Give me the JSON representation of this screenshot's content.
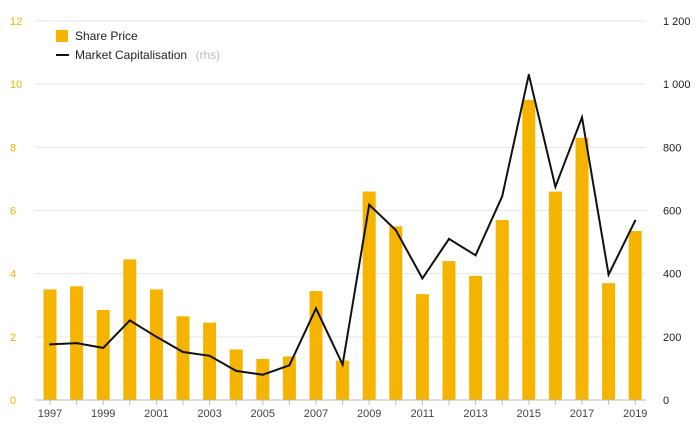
{
  "chart_data": {
    "type": "bar",
    "categories": [
      "1997",
      "1998",
      "1999",
      "2000",
      "2001",
      "2002",
      "2003",
      "2004",
      "2005",
      "2006",
      "2007",
      "2008",
      "2009",
      "2010",
      "2011",
      "2012",
      "2013",
      "2014",
      "2015",
      "2016",
      "2017",
      "2018",
      "2019"
    ],
    "x_tick_labels": [
      "1997",
      "1999",
      "2001",
      "2003",
      "2005",
      "2007",
      "2009",
      "2011",
      "2013",
      "2015",
      "2017",
      "2019"
    ],
    "series": [
      {
        "name": "Share Price",
        "type": "bar",
        "axis": "left",
        "color": "#f5b400",
        "values": [
          3.5,
          3.6,
          2.85,
          4.45,
          3.5,
          2.65,
          2.45,
          1.6,
          1.3,
          1.38,
          3.45,
          1.25,
          6.6,
          5.5,
          3.35,
          4.4,
          3.93,
          5.7,
          9.5,
          6.6,
          8.3,
          3.7,
          5.35
        ]
      },
      {
        "name": "Market Capitalisation",
        "legend_note": "(rhs)",
        "type": "line",
        "axis": "right",
        "color": "#111111",
        "values": [
          176,
          180,
          165,
          252,
          200,
          152,
          140,
          92,
          80,
          110,
          290,
          112,
          618,
          538,
          385,
          510,
          458,
          645,
          1030,
          675,
          895,
          397,
          568
        ]
      }
    ],
    "y_left": {
      "min": 0,
      "max": 12,
      "ticks": [
        0,
        2,
        4,
        6,
        8,
        10,
        12
      ],
      "tick_labels": [
        "0",
        "2",
        "4",
        "6",
        "8",
        "10",
        "12"
      ]
    },
    "y_right": {
      "min": 0,
      "max": 1200,
      "ticks": [
        0,
        200,
        400,
        600,
        800,
        1000,
        1200
      ],
      "tick_labels": [
        "0",
        "200",
        "400",
        "600",
        "800",
        "1 000",
        "1 200"
      ]
    },
    "legend_position": "top-left",
    "grid": "horizontal"
  },
  "colors": {
    "bar": "#f5b400",
    "line": "#111111",
    "left_axis_text": "#f0b400",
    "grid": "#e6e6e6"
  }
}
